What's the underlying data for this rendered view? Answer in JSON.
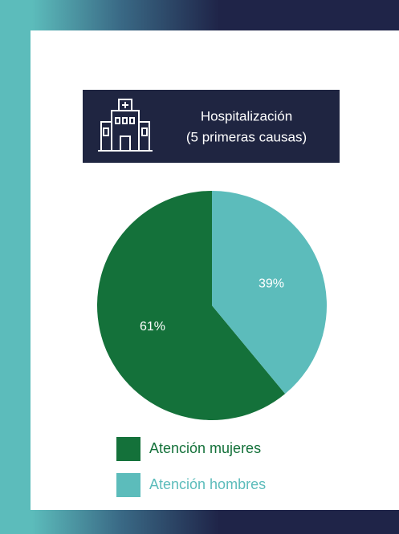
{
  "chart_data": {
    "type": "pie",
    "title": "Hospitalización",
    "subtitle": "(5 primeras causas)",
    "categories": [
      "Atención mujeres",
      "Atención hombres"
    ],
    "values": [
      61,
      39
    ],
    "value_labels": [
      "61%",
      "39%"
    ],
    "colors": [
      "#14713a",
      "#5cbcbb"
    ]
  }
}
